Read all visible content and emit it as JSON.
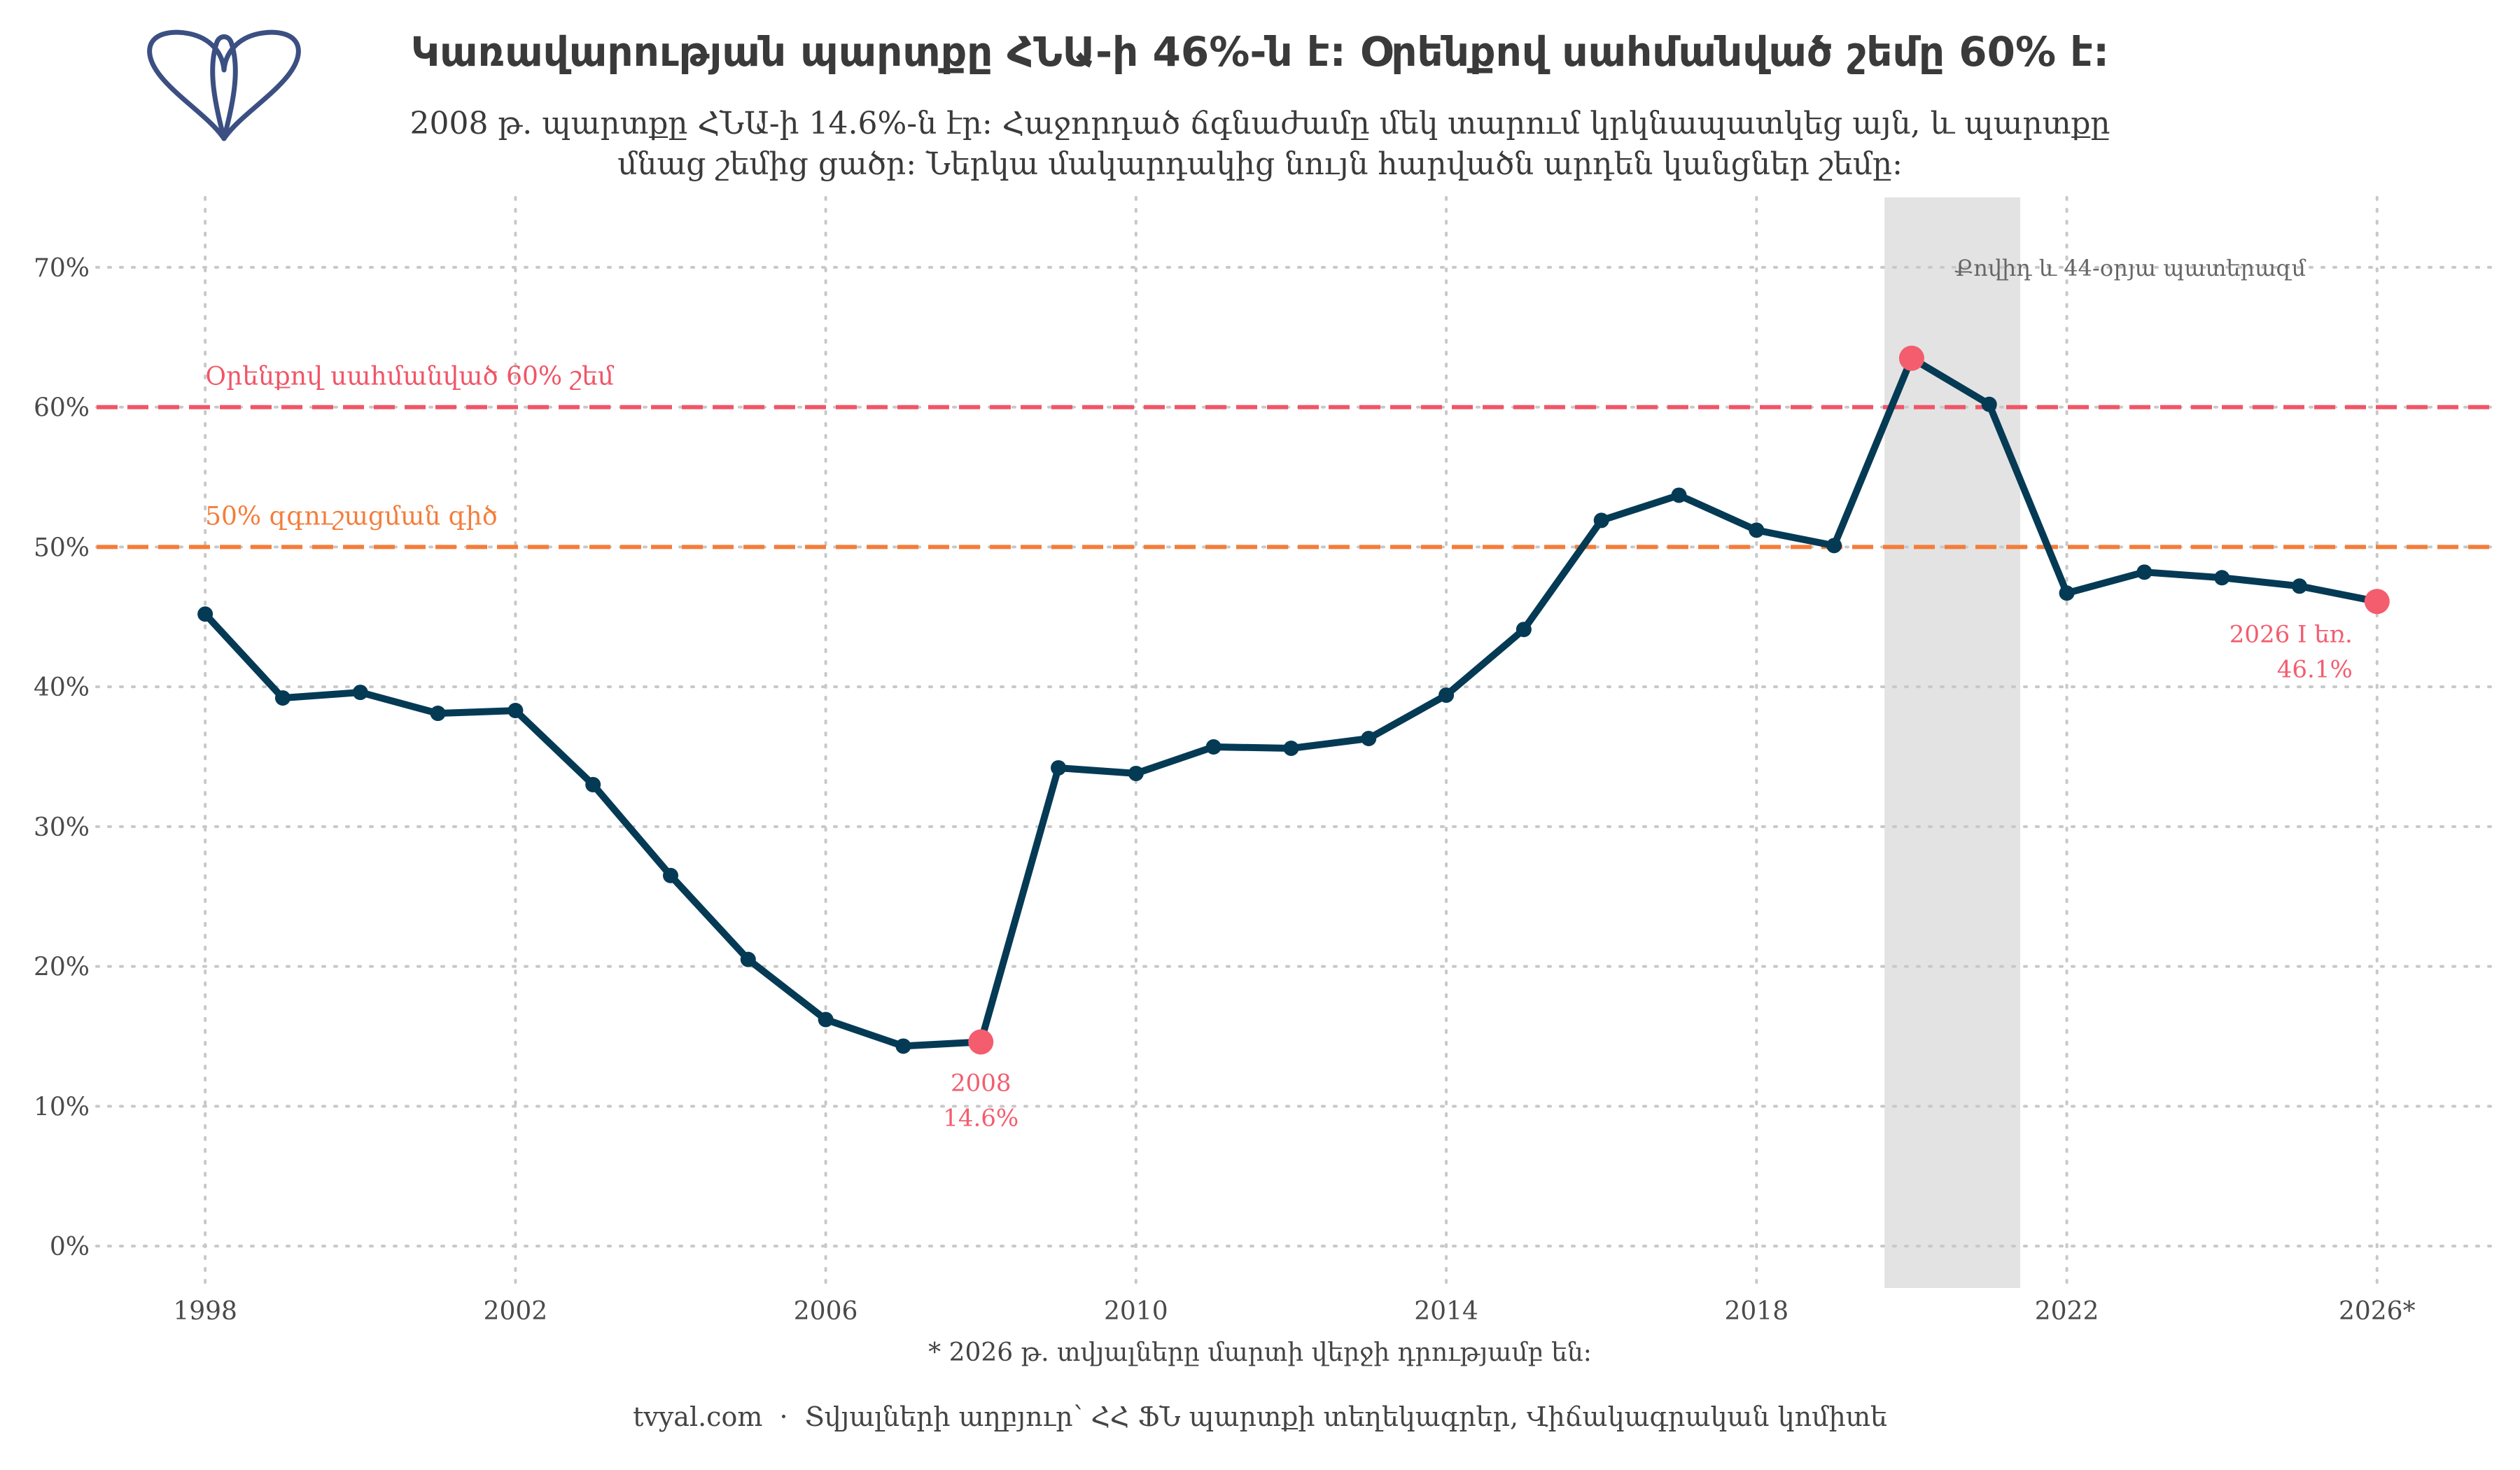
{
  "header": {
    "logo_icon": "tvyal-logo-icon",
    "title": "Կառավարության պարտքը ՀՆԱ-ի 46%-ն է: Օրենքով սահմանված շեմը 60% է:",
    "subtitle_line1": "2008 թ. պարտքը ՀՆԱ-ի 14.6%-ն էր: Հաջորդած ճգնաժամը մեկ տարում կրկնապատկեց այն, և պարտքը",
    "subtitle_line2": "մնաց շեմից ցածր: Ներկա մակարդակից նույն հարվածն արդեն կանցներ շեմը:"
  },
  "chart_data": {
    "type": "line",
    "x": [
      1998,
      1999,
      2000,
      2001,
      2002,
      2003,
      2004,
      2005,
      2006,
      2007,
      2008,
      2009,
      2010,
      2011,
      2012,
      2013,
      2014,
      2015,
      2016,
      2017,
      2018,
      2019,
      2020,
      2021,
      2022,
      2023,
      2024,
      2025,
      2026
    ],
    "series": [
      {
        "values": [
          45.2,
          39.2,
          39.6,
          38.1,
          38.3,
          33.0,
          26.5,
          20.5,
          16.2,
          14.3,
          14.6,
          34.2,
          33.8,
          35.7,
          35.6,
          36.3,
          39.4,
          44.1,
          51.9,
          53.7,
          51.2,
          50.1,
          63.5,
          60.2,
          46.7,
          48.2,
          47.8,
          47.2,
          46.1
        ]
      }
    ],
    "xlim": [
      1996.6,
      2027.5
    ],
    "ylim": [
      -3,
      75
    ],
    "x_ticks": [
      1998,
      2002,
      2006,
      2010,
      2014,
      2018,
      2022,
      2026
    ],
    "x_tick_labels": [
      "1998",
      "2002",
      "2006",
      "2010",
      "2014",
      "2018",
      "2022",
      "2026*"
    ],
    "y_ticks": [
      0,
      10,
      20,
      30,
      40,
      50,
      60,
      70
    ],
    "y_tick_labels": [
      "0%",
      "10%",
      "20%",
      "30%",
      "40%",
      "50%",
      "60%",
      "70%"
    ],
    "grid": true,
    "reference_lines": [
      {
        "value": 60,
        "label": "Օրենքով սահմանված 60% շեմ",
        "color": "#f05567"
      },
      {
        "value": 50,
        "label": "50% զգուշացման գիծ",
        "color": "#f47d3a"
      }
    ],
    "shaded_period": {
      "start": 2019.65,
      "end": 2021.4,
      "label": "Քովիդ և 44-օրյա պատերազմ",
      "color": "#e3e3e3"
    },
    "highlights": [
      {
        "x": 2008,
        "y": 14.6,
        "label_line1": "2008",
        "label_line2": "14.6%"
      },
      {
        "x": 2020,
        "y": 63.5,
        "label_line1": "",
        "label_line2": ""
      },
      {
        "x": 2026,
        "y": 46.1,
        "label_line1": "2026 I եռ.",
        "label_line2": "46.1%"
      }
    ],
    "colors": {
      "line": "#053a55",
      "highlight": "#f35d6e",
      "grid": "#c8c8c8",
      "tick_text": "#4a4a4a",
      "annotation": "#666666"
    }
  },
  "footer": {
    "footnote": "* 2026 թ. տվյալները մարտի վերջի դրությամբ են:",
    "site": "tvyal.com",
    "separator": "·",
    "source": "Տվյալների աղբյուր՝ ՀՀ ՖՆ պարտքի տեղեկագրեր, Վիճակագրական կոմիտե"
  }
}
